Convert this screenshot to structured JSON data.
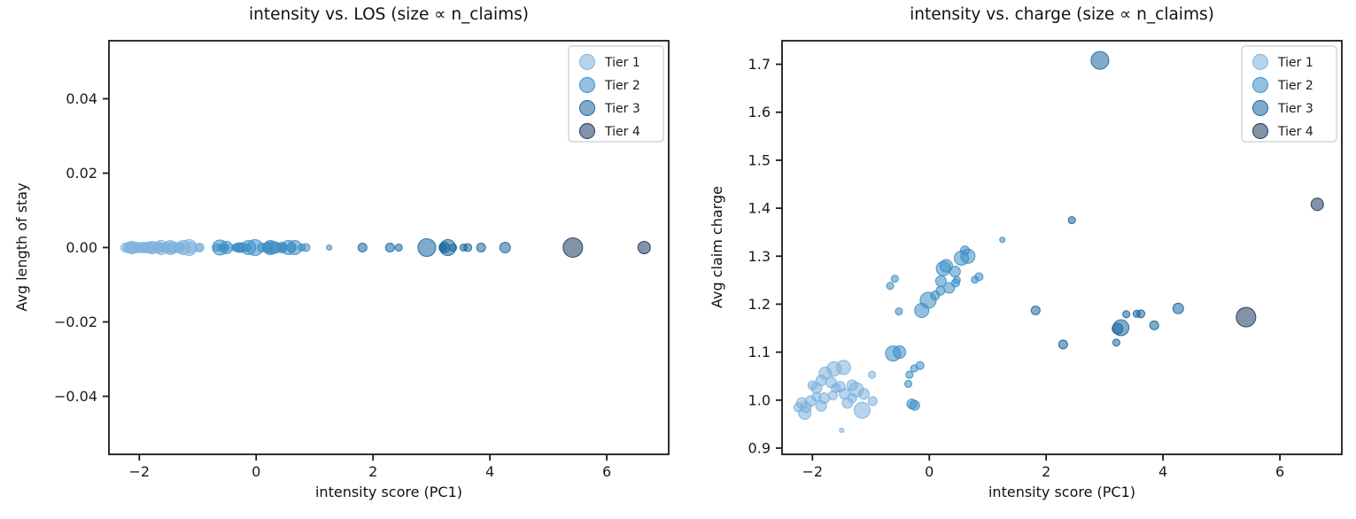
{
  "figure": {
    "background": "#ffffff"
  },
  "tiers": [
    {
      "label": "Tier 1",
      "color": "#7eb1dc"
    },
    {
      "label": "Tier 2",
      "color": "#3d8ec4"
    },
    {
      "label": "Tier 3",
      "color": "#19669f"
    },
    {
      "label": "Tier 4",
      "color": "#1d3a5f"
    }
  ],
  "chart_data": [
    {
      "type": "scatter",
      "title": "intensity vs. LOS (size ∝ n_claims)",
      "xlabel": "intensity score (PC1)",
      "ylabel": "Avg length of stay",
      "xlim": [
        -2.52,
        7.06
      ],
      "ylim": [
        -0.0556,
        0.0556
      ],
      "xticks": [
        -2,
        0,
        2,
        4,
        6
      ],
      "xtick_labels": [
        "−2",
        "0",
        "2",
        "4",
        "6"
      ],
      "yticks": [
        -0.04,
        -0.02,
        0.0,
        0.02,
        0.04
      ],
      "ytick_labels": [
        "−0.04",
        "−0.02",
        "0.00",
        "0.02",
        "0.04"
      ],
      "grid": false,
      "y_field": "los_constant",
      "constant_y": 0.0,
      "note": "every bubble lies on y = 0.00; bubble size proportional to n_claims",
      "legend": {
        "position": "upper right",
        "entries": [
          "Tier 1",
          "Tier 2",
          "Tier 3",
          "Tier 4"
        ]
      }
    },
    {
      "type": "scatter",
      "title": "intensity vs. charge (size ∝ n_claims)",
      "xlabel": "intensity score (PC1)",
      "ylabel": "Avg claim charge",
      "xlim": [
        -2.52,
        7.06
      ],
      "ylim": [
        0.887,
        1.749
      ],
      "xticks": [
        -2,
        0,
        2,
        4,
        6
      ],
      "xtick_labels": [
        "−2",
        "0",
        "2",
        "4",
        "6"
      ],
      "yticks": [
        0.9,
        1.0,
        1.1,
        1.2,
        1.3,
        1.4,
        1.5,
        1.6,
        1.7
      ],
      "ytick_labels": [
        "0.9",
        "1.0",
        "1.1",
        "1.2",
        "1.3",
        "1.4",
        "1.5",
        "1.6",
        "1.7"
      ],
      "grid": false,
      "y_field": "charge",
      "note": "bubble size proportional to n_claims",
      "legend": {
        "position": "upper right",
        "entries": [
          "Tier 1",
          "Tier 2",
          "Tier 3",
          "Tier 4"
        ]
      }
    }
  ],
  "points": [
    {
      "x": -2.24,
      "charge": 0.985,
      "tier": 1,
      "r": 5
    },
    {
      "x": -2.18,
      "charge": 0.994,
      "tier": 1,
      "r": 6
    },
    {
      "x": -2.13,
      "charge": 0.973,
      "tier": 1,
      "r": 7
    },
    {
      "x": -2.11,
      "charge": 0.985,
      "tier": 1,
      "r": 6
    },
    {
      "x": -2.03,
      "charge": 0.998,
      "tier": 1,
      "r": 6
    },
    {
      "x": -2.0,
      "charge": 1.031,
      "tier": 1,
      "r": 5
    },
    {
      "x": -1.93,
      "charge": 1.025,
      "tier": 1,
      "r": 6
    },
    {
      "x": -1.93,
      "charge": 1.007,
      "tier": 1,
      "r": 5
    },
    {
      "x": -1.85,
      "charge": 1.041,
      "tier": 1,
      "r": 6
    },
    {
      "x": -1.85,
      "charge": 0.988,
      "tier": 1,
      "r": 6
    },
    {
      "x": -1.8,
      "charge": 1.004,
      "tier": 1,
      "r": 6
    },
    {
      "x": -1.78,
      "charge": 1.056,
      "tier": 1,
      "r": 7
    },
    {
      "x": -1.68,
      "charge": 1.037,
      "tier": 1,
      "r": 6
    },
    {
      "x": -1.65,
      "charge": 1.01,
      "tier": 1,
      "r": 5
    },
    {
      "x": -1.63,
      "charge": 1.065,
      "tier": 1,
      "r": 8
    },
    {
      "x": -1.6,
      "charge": 1.025,
      "tier": 1,
      "r": 5
    },
    {
      "x": -1.53,
      "charge": 1.028,
      "tier": 1,
      "r": 6
    },
    {
      "x": -1.5,
      "charge": 0.937,
      "tier": 1,
      "r": 2.5
    },
    {
      "x": -1.47,
      "charge": 1.068,
      "tier": 1,
      "r": 8
    },
    {
      "x": -1.45,
      "charge": 1.013,
      "tier": 1,
      "r": 6
    },
    {
      "x": -1.4,
      "charge": 0.994,
      "tier": 1,
      "r": 6
    },
    {
      "x": -1.32,
      "charge": 1.031,
      "tier": 1,
      "r": 6
    },
    {
      "x": -1.32,
      "charge": 1.004,
      "tier": 1,
      "r": 5
    },
    {
      "x": -1.25,
      "charge": 1.022,
      "tier": 1,
      "r": 8
    },
    {
      "x": -1.15,
      "charge": 0.979,
      "tier": 1,
      "r": 9
    },
    {
      "x": -1.12,
      "charge": 1.013,
      "tier": 1,
      "r": 6
    },
    {
      "x": -0.98,
      "charge": 1.053,
      "tier": 1,
      "r": 4
    },
    {
      "x": -0.97,
      "charge": 0.998,
      "tier": 1,
      "r": 5
    },
    {
      "x": -0.67,
      "charge": 1.238,
      "tier": 2,
      "r": 4
    },
    {
      "x": -0.62,
      "charge": 1.097,
      "tier": 2,
      "r": 8.5
    },
    {
      "x": -0.59,
      "charge": 1.253,
      "tier": 2,
      "r": 4
    },
    {
      "x": -0.52,
      "charge": 1.185,
      "tier": 2,
      "r": 4
    },
    {
      "x": -0.51,
      "charge": 1.1,
      "tier": 2,
      "r": 7
    },
    {
      "x": -0.36,
      "charge": 1.034,
      "tier": 2,
      "r": 4
    },
    {
      "x": -0.34,
      "charge": 1.053,
      "tier": 2,
      "r": 4
    },
    {
      "x": -0.3,
      "charge": 0.992,
      "tier": 2,
      "r": 5.5
    },
    {
      "x": -0.26,
      "charge": 1.066,
      "tier": 2,
      "r": 4
    },
    {
      "x": -0.25,
      "charge": 0.989,
      "tier": 2,
      "r": 5.5
    },
    {
      "x": -0.16,
      "charge": 1.072,
      "tier": 2,
      "r": 4.5
    },
    {
      "x": -0.13,
      "charge": 1.187,
      "tier": 2,
      "r": 8
    },
    {
      "x": -0.02,
      "charge": 1.208,
      "tier": 2,
      "r": 9
    },
    {
      "x": 0.1,
      "charge": 1.218,
      "tier": 2,
      "r": 5
    },
    {
      "x": 0.19,
      "charge": 1.228,
      "tier": 2,
      "r": 5
    },
    {
      "x": 0.2,
      "charge": 1.248,
      "tier": 2,
      "r": 6
    },
    {
      "x": 0.24,
      "charge": 1.274,
      "tier": 2,
      "r": 8
    },
    {
      "x": 0.29,
      "charge": 1.28,
      "tier": 2,
      "r": 7
    },
    {
      "x": 0.34,
      "charge": 1.234,
      "tier": 2,
      "r": 6
    },
    {
      "x": 0.44,
      "charge": 1.268,
      "tier": 2,
      "r": 6
    },
    {
      "x": 0.45,
      "charge": 1.244,
      "tier": 2,
      "r": 4.5
    },
    {
      "x": 0.47,
      "charge": 1.25,
      "tier": 2,
      "r": 4
    },
    {
      "x": 0.55,
      "charge": 1.296,
      "tier": 2,
      "r": 8
    },
    {
      "x": 0.61,
      "charge": 1.312,
      "tier": 2,
      "r": 5
    },
    {
      "x": 0.66,
      "charge": 1.3,
      "tier": 2,
      "r": 8
    },
    {
      "x": 0.78,
      "charge": 1.251,
      "tier": 2,
      "r": 4
    },
    {
      "x": 0.85,
      "charge": 1.257,
      "tier": 2,
      "r": 4.5
    },
    {
      "x": 1.25,
      "charge": 1.334,
      "tier": 2,
      "r": 3
    },
    {
      "x": 1.82,
      "charge": 1.187,
      "tier": 3,
      "r": 5
    },
    {
      "x": 2.29,
      "charge": 1.116,
      "tier": 3,
      "r": 5
    },
    {
      "x": 2.44,
      "charge": 1.375,
      "tier": 3,
      "r": 4
    },
    {
      "x": 2.92,
      "charge": 1.708,
      "tier": 3,
      "r": 10
    },
    {
      "x": 3.2,
      "charge": 1.12,
      "tier": 3,
      "r": 4
    },
    {
      "x": 3.22,
      "charge": 1.149,
      "tier": 3,
      "r": 6
    },
    {
      "x": 3.28,
      "charge": 1.151,
      "tier": 3,
      "r": 9
    },
    {
      "x": 3.37,
      "charge": 1.179,
      "tier": 3,
      "r": 4
    },
    {
      "x": 3.55,
      "charge": 1.18,
      "tier": 3,
      "r": 4
    },
    {
      "x": 3.62,
      "charge": 1.18,
      "tier": 3,
      "r": 4.5
    },
    {
      "x": 3.85,
      "charge": 1.156,
      "tier": 3,
      "r": 5
    },
    {
      "x": 4.26,
      "charge": 1.191,
      "tier": 3,
      "r": 6
    },
    {
      "x": 5.42,
      "charge": 1.173,
      "tier": 4,
      "r": 11
    },
    {
      "x": 6.64,
      "charge": 1.408,
      "tier": 4,
      "r": 7
    }
  ]
}
